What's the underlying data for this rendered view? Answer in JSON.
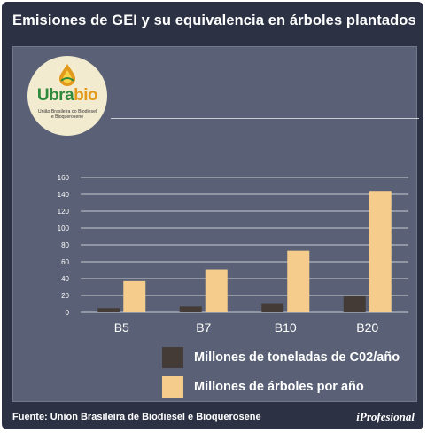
{
  "header": {
    "title": "Emisiones de GEI y su equivalencia en árboles plantados"
  },
  "logo": {
    "word_part1": "Ubra",
    "word_part2": "bio",
    "subtitle_line1": "União Brasileira do Biodiesel",
    "subtitle_line2": "e Bioquerosene"
  },
  "footer": {
    "source": "Fuente: Union Brasileira de Biodiesel e Bioquerosene",
    "brand": "iProfesional"
  },
  "colors": {
    "frame": "#2c3244",
    "panel": "#5a6176",
    "co2": "#443b37",
    "trees": "#f6cc8d"
  },
  "chart_data": {
    "type": "bar",
    "categories": [
      "B5",
      "B7",
      "B10",
      "B20"
    ],
    "series": [
      {
        "name": "Millones de toneladas de C02/año",
        "values": [
          5,
          7,
          10,
          19
        ]
      },
      {
        "name": "Millones de árboles por año",
        "values": [
          37,
          51,
          73,
          144
        ]
      }
    ],
    "ylim": [
      0,
      160
    ],
    "yticks": [
      0,
      20,
      40,
      60,
      80,
      100,
      120,
      140,
      160
    ],
    "grid": true,
    "legend_position": "bottom-right"
  }
}
